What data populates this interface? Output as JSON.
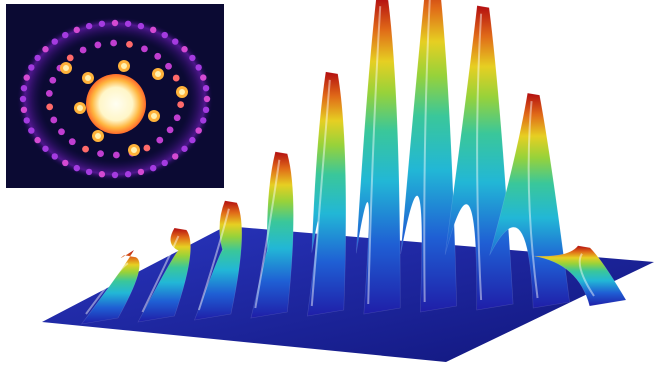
{
  "figure": {
    "inset_colormap": [
      "#0a0a3a",
      "#3a0f8c",
      "#8a23c8",
      "#d235b5",
      "#ff7a3a",
      "#ffcf3a",
      "#fffbe8"
    ],
    "surface_colormap": [
      "#1f1ea8",
      "#1f4fd0",
      "#1fb0d8",
      "#31c39a",
      "#8bd03a",
      "#e6d020",
      "#e27018",
      "#b40f10"
    ],
    "peak_heights_relative": [
      0.08,
      0.17,
      0.26,
      0.42,
      0.68,
      0.92,
      1.0,
      0.9,
      0.62,
      0.13
    ],
    "background_color": "#ffffff"
  }
}
